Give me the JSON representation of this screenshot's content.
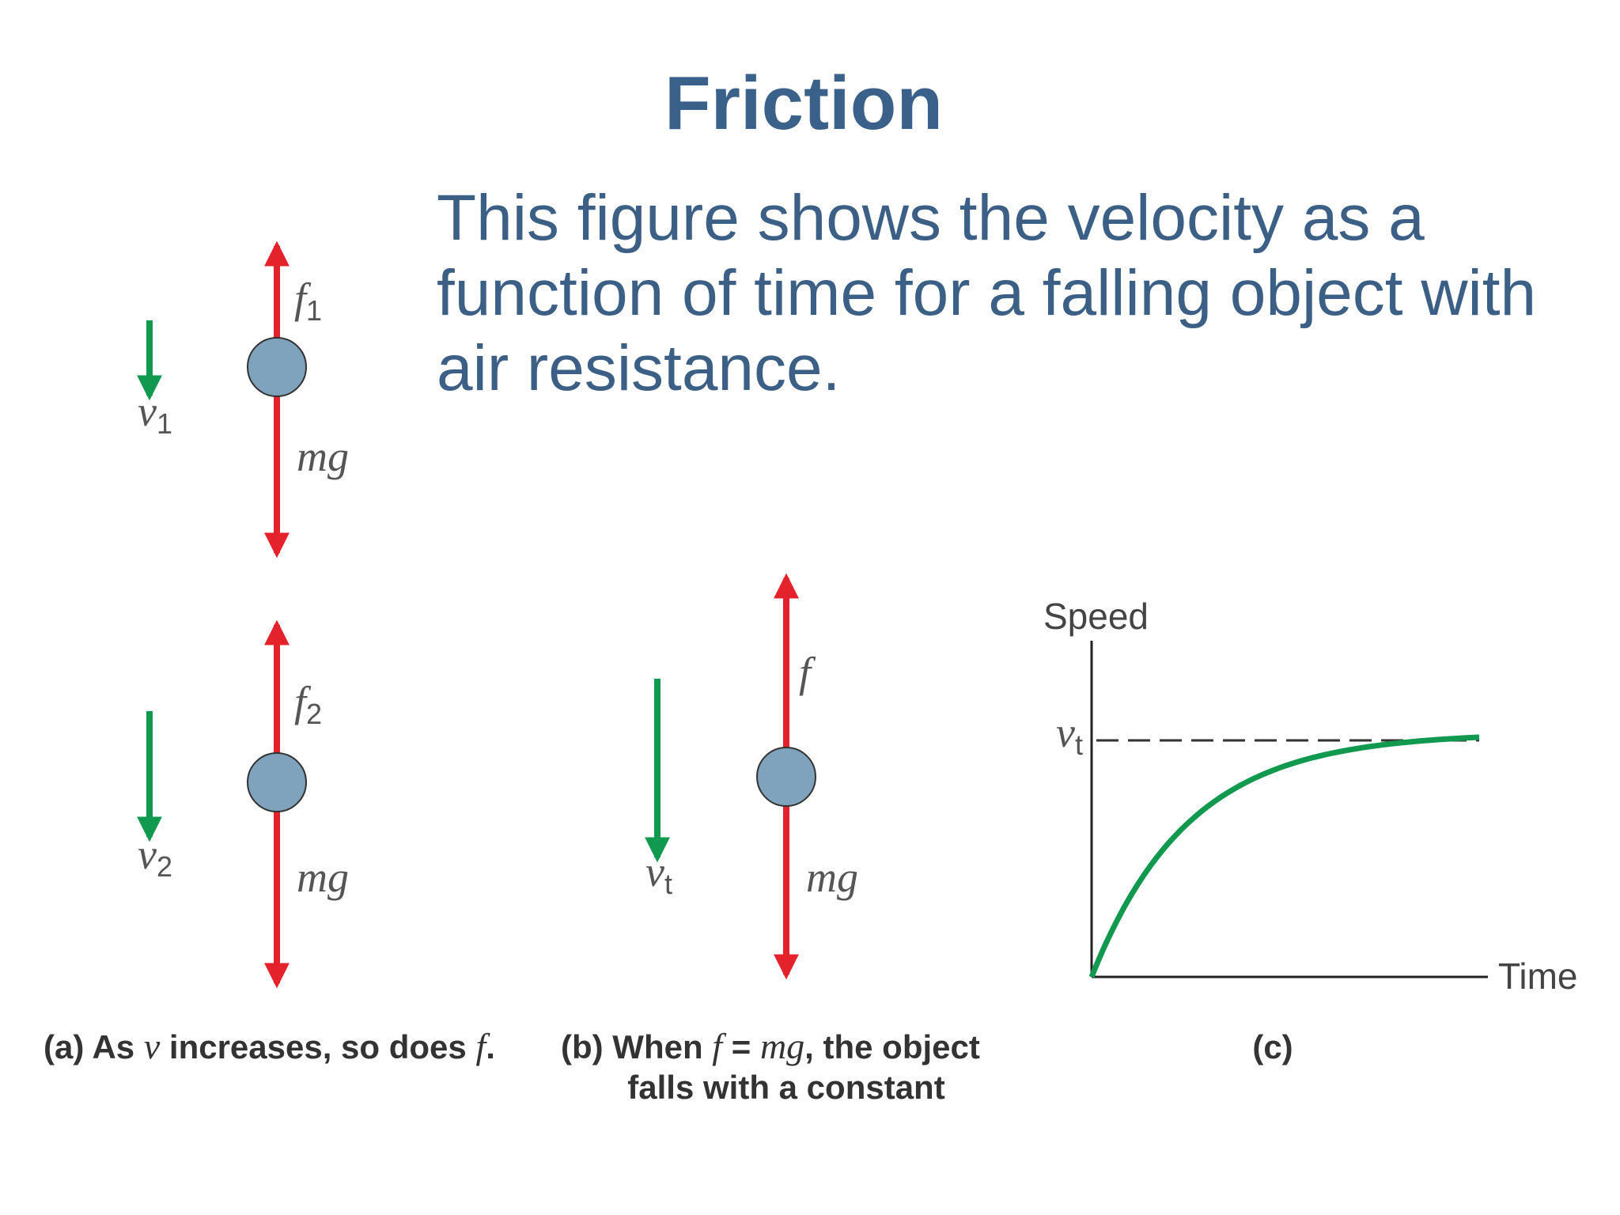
{
  "title": "Friction",
  "body": [
    "This figure shows the velocity as a",
    "function of time for a falling object with",
    "air resistance."
  ],
  "figure": {
    "panel_a": {
      "top": {
        "force": {
          "symbol": "f",
          "subscript": "1"
        },
        "weight": "mg",
        "velocity": {
          "symbol": "v",
          "subscript": "1"
        }
      },
      "bottom": {
        "force": {
          "symbol": "f",
          "subscript": "2"
        },
        "weight": "mg",
        "velocity": {
          "symbol": "v",
          "subscript": "2"
        }
      },
      "caption": [
        "(a) As ",
        "v",
        " increases, so does ",
        "f",
        "."
      ]
    },
    "panel_b": {
      "force": "f",
      "weight": "mg",
      "velocity": {
        "symbol": "v",
        "subscript": "t"
      },
      "caption": {
        "line1": [
          "(b) When ",
          "f",
          " = ",
          "mg",
          ", the object"
        ],
        "line2": "falls with a constant"
      }
    },
    "panel_c": {
      "y_axis_label": "Speed",
      "x_axis_label": "Time",
      "asymptote_label": {
        "symbol": "v",
        "subscript": "t"
      },
      "caption": "(c)"
    }
  }
}
